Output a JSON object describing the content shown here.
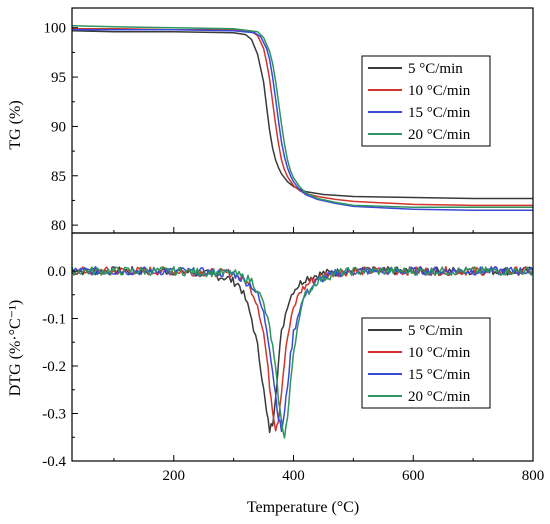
{
  "chart_data": [
    {
      "type": "line",
      "panel": "top",
      "title": "",
      "xlabel": "",
      "ylabel": "TG (%)",
      "xlim": [
        30,
        800
      ],
      "ylim": [
        79.2,
        102
      ],
      "yticks": [
        "80",
        "85",
        "90",
        "95",
        "100"
      ],
      "grid": false,
      "legend_position": "right",
      "series": [
        {
          "name": "5 °C/min",
          "color": "#3a3a3a",
          "x": [
            30,
            100,
            200,
            300,
            320,
            330,
            340,
            350,
            355,
            360,
            365,
            370,
            375,
            380,
            390,
            400,
            420,
            450,
            500,
            600,
            700,
            800
          ],
          "y": [
            99.7,
            99.6,
            99.6,
            99.5,
            99.3,
            98.8,
            97.3,
            94.5,
            92.0,
            89.6,
            87.8,
            86.6,
            85.8,
            85.2,
            84.4,
            83.9,
            83.4,
            83.1,
            82.9,
            82.8,
            82.7,
            82.7
          ]
        },
        {
          "name": "10 °C/min",
          "color": "#d0362a",
          "x": [
            30,
            100,
            200,
            300,
            330,
            340,
            350,
            355,
            360,
            365,
            370,
            375,
            380,
            385,
            390,
            400,
            410,
            420,
            440,
            470,
            500,
            600,
            700,
            800
          ],
          "y": [
            99.9,
            99.9,
            99.8,
            99.8,
            99.6,
            99.2,
            97.9,
            96.5,
            94.8,
            92.5,
            90.2,
            88.2,
            86.6,
            85.6,
            84.9,
            84.0,
            83.5,
            83.2,
            82.9,
            82.6,
            82.4,
            82.1,
            82.0,
            82.0
          ]
        },
        {
          "name": "15 °C/min",
          "color": "#3a4ad8",
          "x": [
            30,
            100,
            200,
            300,
            335,
            345,
            355,
            360,
            365,
            370,
            375,
            380,
            385,
            390,
            395,
            400,
            410,
            420,
            440,
            470,
            500,
            600,
            700,
            800
          ],
          "y": [
            99.8,
            99.8,
            99.8,
            99.7,
            99.5,
            99.1,
            97.9,
            96.8,
            95.0,
            92.8,
            90.5,
            88.4,
            86.9,
            85.8,
            85.0,
            84.4,
            83.6,
            83.1,
            82.6,
            82.2,
            81.9,
            81.6,
            81.5,
            81.5
          ]
        },
        {
          "name": "20 °C/min",
          "color": "#2e9460",
          "x": [
            30,
            100,
            200,
            300,
            340,
            350,
            360,
            365,
            370,
            375,
            380,
            385,
            390,
            395,
            400,
            410,
            420,
            440,
            470,
            500,
            600,
            700,
            800
          ],
          "y": [
            100.2,
            100.1,
            100.0,
            99.9,
            99.6,
            99.0,
            97.6,
            96.4,
            94.6,
            92.4,
            90.2,
            88.2,
            86.6,
            85.5,
            84.8,
            83.9,
            83.3,
            82.7,
            82.3,
            82.0,
            81.8,
            81.8,
            81.8
          ]
        }
      ]
    },
    {
      "type": "line",
      "panel": "bottom",
      "title": "",
      "xlabel": "Temperature (°C)",
      "ylabel": "DTG (%·°C⁻¹)",
      "xlim": [
        30,
        800
      ],
      "ylim": [
        -0.4,
        0.08
      ],
      "xticks": [
        "200",
        "400",
        "600",
        "800"
      ],
      "yticks": [
        "-0.4",
        "-0.3",
        "-0.2",
        "-0.1",
        "0.0"
      ],
      "grid": false,
      "legend_position": "bottom-right",
      "series": [
        {
          "name": "5 °C/min",
          "color": "#3a3a3a",
          "x": [
            30,
            100,
            200,
            250,
            290,
            310,
            320,
            330,
            340,
            345,
            350,
            355,
            360,
            365,
            370,
            375,
            380,
            390,
            400,
            420,
            450,
            500,
            600,
            700,
            800
          ],
          "y": [
            0.0,
            0.0,
            0.0,
            -0.005,
            -0.015,
            -0.03,
            -0.06,
            -0.1,
            -0.16,
            -0.2,
            -0.25,
            -0.3,
            -0.335,
            -0.32,
            -0.26,
            -0.19,
            -0.13,
            -0.07,
            -0.04,
            -0.015,
            -0.005,
            0.0,
            0.0,
            0.0,
            0.0
          ]
        },
        {
          "name": "10 °C/min",
          "color": "#d0362a",
          "x": [
            30,
            100,
            200,
            300,
            320,
            330,
            340,
            350,
            355,
            360,
            365,
            370,
            375,
            380,
            385,
            390,
            400,
            410,
            430,
            460,
            500,
            600,
            700,
            800
          ],
          "y": [
            0.0,
            0.0,
            0.0,
            -0.005,
            -0.02,
            -0.04,
            -0.07,
            -0.13,
            -0.18,
            -0.24,
            -0.29,
            -0.33,
            -0.31,
            -0.25,
            -0.19,
            -0.14,
            -0.08,
            -0.045,
            -0.02,
            -0.005,
            0.0,
            0.0,
            0.0,
            0.0
          ]
        },
        {
          "name": "15 °C/min",
          "color": "#3a4ad8",
          "x": [
            30,
            100,
            200,
            300,
            330,
            340,
            350,
            355,
            360,
            365,
            370,
            375,
            380,
            385,
            390,
            395,
            400,
            410,
            420,
            440,
            470,
            500,
            600,
            700,
            800
          ],
          "y": [
            0.0,
            0.0,
            0.0,
            -0.005,
            -0.03,
            -0.05,
            -0.09,
            -0.12,
            -0.16,
            -0.21,
            -0.26,
            -0.31,
            -0.335,
            -0.3,
            -0.24,
            -0.18,
            -0.13,
            -0.08,
            -0.05,
            -0.02,
            -0.005,
            0.0,
            0.0,
            0.0,
            0.0
          ]
        },
        {
          "name": "20 °C/min",
          "color": "#2e9460",
          "x": [
            30,
            100,
            200,
            300,
            330,
            340,
            350,
            360,
            365,
            370,
            375,
            380,
            385,
            390,
            395,
            400,
            410,
            420,
            440,
            470,
            500,
            600,
            700,
            800
          ],
          "y": [
            0.0,
            0.0,
            0.0,
            -0.005,
            -0.02,
            -0.04,
            -0.07,
            -0.12,
            -0.16,
            -0.21,
            -0.27,
            -0.32,
            -0.345,
            -0.31,
            -0.24,
            -0.17,
            -0.09,
            -0.05,
            -0.02,
            -0.005,
            0.0,
            0.0,
            0.0,
            0.0
          ]
        }
      ]
    }
  ]
}
